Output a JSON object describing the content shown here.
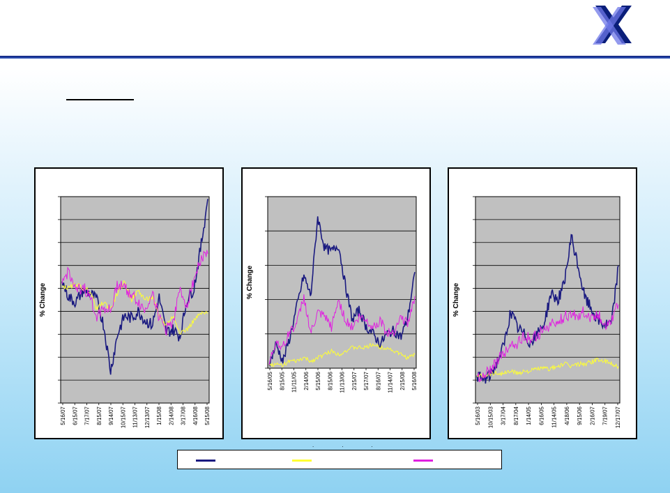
{
  "colors": {
    "series1": "#1a1a80",
    "series2": "#ffff33",
    "series3": "#e020e0",
    "plot_bg": "#c0c0c0"
  },
  "logo": {
    "icon": "double-x-logo-icon"
  },
  "legend": {
    "items": [
      {
        "color": "#1a1a80",
        "label": ""
      },
      {
        "color": "#ffff33",
        "label": ""
      },
      {
        "color": "#e020e0",
        "label": ""
      }
    ]
  },
  "chart_data": [
    {
      "type": "line",
      "ylabel": "% Change",
      "x_ticks": [
        "5/16/07",
        "6/15/07",
        "7/17/07",
        "8/15/07",
        "9/14/07",
        "10/15/07",
        "11/13/07",
        "12/13/07",
        "1/15/08",
        "2/14/08",
        "3/17/08",
        "4/16/08",
        "5/15/08"
      ],
      "gridlines": 9,
      "y_range": [
        0,
        9
      ],
      "series": [
        {
          "color": "#1a1a80",
          "values": [
            5.3,
            4.6,
            4.4,
            4.9,
            4.8,
            4.5,
            3.4,
            1.4,
            3.0,
            3.8,
            3.7,
            4.0,
            3.6,
            3.4,
            4.6,
            3.1,
            3.2,
            2.9,
            4.5,
            5.0,
            6.8,
            8.9
          ]
        },
        {
          "color": "#ffff33",
          "values": [
            5.1,
            5.0,
            5.2,
            5.0,
            4.9,
            4.1,
            4.4,
            4.1,
            4.8,
            5.3,
            4.5,
            4.9,
            4.5,
            4.6,
            3.8,
            3.4,
            3.8,
            3.1,
            3.2,
            3.6,
            3.9,
            3.9
          ]
        },
        {
          "color": "#e020e0",
          "values": [
            5.2,
            5.8,
            4.8,
            5.1,
            4.6,
            3.8,
            4.2,
            4.0,
            5.2,
            5.1,
            4.7,
            4.4,
            4.0,
            4.9,
            3.7,
            3.2,
            3.6,
            4.9,
            4.3,
            5.4,
            6.3,
            6.5
          ]
        }
      ]
    },
    {
      "type": "line",
      "ylabel": "% Change",
      "x_ticks": [
        "5/16/05",
        "8/15/05",
        "11/11/05",
        "2/14/06",
        "5/15/06",
        "8/15/06",
        "11/13/06",
        "2/15/07",
        "5/17/07",
        "8/16/07",
        "11/14/07",
        "2/15/08",
        "5/16/08"
      ],
      "gridlines": 5,
      "y_range": [
        0,
        5
      ],
      "series": [
        {
          "color": "#1a1a80",
          "values": [
            0.1,
            0.7,
            0.2,
            0.9,
            1.8,
            2.7,
            2.1,
            4.4,
            3.5,
            3.4,
            3.6,
            2.4,
            1.4,
            1.7,
            1.2,
            1.0,
            0.7,
            1.0,
            1.1,
            0.9,
            1.5,
            2.8
          ]
        },
        {
          "color": "#ffff33",
          "values": [
            0.1,
            0.1,
            0.1,
            0.2,
            0.2,
            0.3,
            0.2,
            0.3,
            0.4,
            0.5,
            0.4,
            0.5,
            0.6,
            0.6,
            0.6,
            0.7,
            0.6,
            0.6,
            0.5,
            0.4,
            0.3,
            0.4
          ]
        },
        {
          "color": "#e020e0",
          "values": [
            0.1,
            0.8,
            0.6,
            1.1,
            1.3,
            2.1,
            1.0,
            1.6,
            1.5,
            1.2,
            2.0,
            1.4,
            1.2,
            1.5,
            1.4,
            1.2,
            1.4,
            1.0,
            1.1,
            1.5,
            1.3,
            2.1
          ]
        }
      ]
    },
    {
      "type": "line",
      "ylabel": "% Change",
      "x_ticks": [
        "5/16/03",
        "10/15/03",
        "3/17/04",
        "8/17/04",
        "1/14/05",
        "6/16/05",
        "11/14/05",
        "4/18/06",
        "9/15/06",
        "2/16/07",
        "7/19/07",
        "12/17/07"
      ],
      "gridlines": 9,
      "y_range": [
        0,
        9
      ],
      "series": [
        {
          "color": "#1a1a80",
          "values": [
            1.2,
            1.0,
            1.2,
            1.8,
            2.5,
            4.0,
            3.3,
            3.0,
            2.6,
            3.0,
            3.5,
            4.8,
            4.5,
            5.2,
            7.2,
            6.0,
            4.6,
            4.1,
            3.6,
            3.4,
            3.5,
            6.0
          ]
        },
        {
          "color": "#ffff33",
          "values": [
            1.2,
            1.2,
            1.3,
            1.3,
            1.3,
            1.4,
            1.3,
            1.4,
            1.4,
            1.5,
            1.5,
            1.5,
            1.6,
            1.7,
            1.6,
            1.7,
            1.7,
            1.8,
            1.9,
            1.8,
            1.7,
            1.6
          ]
        },
        {
          "color": "#e020e0",
          "values": [
            1.2,
            1.1,
            1.5,
            1.8,
            2.2,
            2.5,
            2.6,
            2.9,
            2.8,
            3.0,
            3.2,
            3.4,
            3.5,
            3.8,
            3.8,
            3.8,
            4.0,
            3.7,
            3.9,
            3.4,
            3.7,
            4.3
          ]
        }
      ]
    }
  ]
}
